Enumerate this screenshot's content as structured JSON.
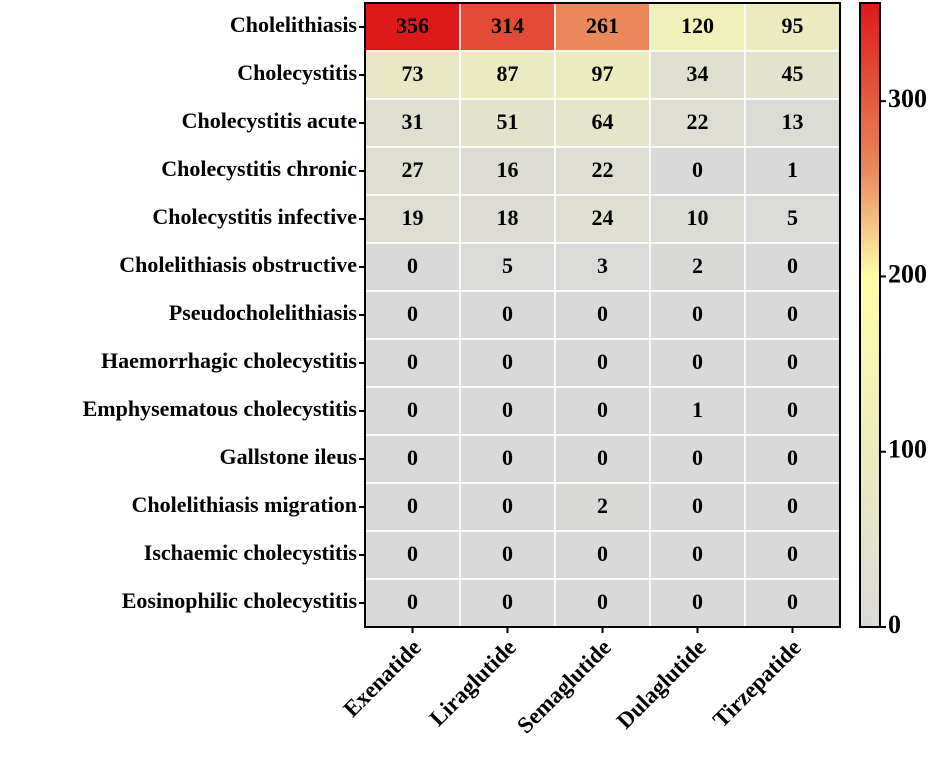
{
  "chart_data": {
    "type": "heatmap",
    "rows": [
      "Cholelithiasis",
      "Cholecystitis",
      "Cholecystitis acute",
      "Cholecystitis chronic",
      "Cholecystitis infective",
      "Cholelithiasis obstructive",
      "Pseudocholelithiasis",
      "Haemorrhagic cholecystitis",
      "Emphysematous cholecystitis",
      "Gallstone ileus",
      "Cholelithiasis migration",
      "Ischaemic cholecystitis",
      "Eosinophilic cholecystitis"
    ],
    "columns": [
      "Exenatide",
      "Liraglutide",
      "Semaglutide",
      "Dulaglutide",
      "Tirzepatide"
    ],
    "values": [
      [
        356,
        314,
        261,
        120,
        95
      ],
      [
        73,
        87,
        97,
        34,
        45
      ],
      [
        31,
        51,
        64,
        22,
        13
      ],
      [
        27,
        16,
        22,
        0,
        1
      ],
      [
        19,
        18,
        24,
        10,
        5
      ],
      [
        0,
        5,
        3,
        2,
        0
      ],
      [
        0,
        0,
        0,
        0,
        0
      ],
      [
        0,
        0,
        0,
        0,
        0
      ],
      [
        0,
        0,
        0,
        1,
        0
      ],
      [
        0,
        0,
        0,
        0,
        0
      ],
      [
        0,
        0,
        2,
        0,
        0
      ],
      [
        0,
        0,
        0,
        0,
        0
      ],
      [
        0,
        0,
        0,
        0,
        0
      ]
    ],
    "colorbar": {
      "lim": [
        0,
        356
      ],
      "ticks": [
        0,
        100,
        200,
        300
      ]
    },
    "colormap": {
      "stops": [
        0,
        0.56,
        0.73,
        1
      ],
      "colors": [
        "#d9d9d9",
        "#ffffa6",
        "#e98a5c",
        "#dc1a1a"
      ]
    }
  }
}
